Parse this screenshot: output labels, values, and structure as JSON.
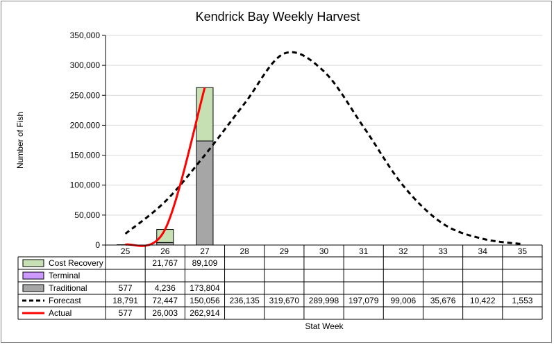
{
  "chart_data": {
    "type": "bar",
    "title": "Kendrick Bay Weekly Harvest",
    "xlabel": "Stat Week",
    "ylabel": "Number of Fish",
    "categories": [
      "25",
      "26",
      "27",
      "28",
      "29",
      "30",
      "31",
      "32",
      "33",
      "34",
      "35"
    ],
    "ylim": [
      0,
      350000
    ],
    "yticks": [
      0,
      50000,
      100000,
      150000,
      200000,
      250000,
      300000,
      350000
    ],
    "ytick_labels": [
      "0",
      "50,000",
      "100,000",
      "150,000",
      "200,000",
      "250,000",
      "300,000",
      "350,000"
    ],
    "grid": "horizontal",
    "legend": "data-table",
    "series": [
      {
        "name": "Cost Recovery",
        "kind": "stacked-bar",
        "color": "#c6e0b4",
        "values": [
          null,
          21767,
          89109,
          null,
          null,
          null,
          null,
          null,
          null,
          null,
          null
        ],
        "labels": [
          "",
          "21,767",
          "89,109",
          "",
          "",
          "",
          "",
          "",
          "",
          "",
          ""
        ]
      },
      {
        "name": "Terminal",
        "kind": "stacked-bar",
        "color": "#cc99ff",
        "values": [
          null,
          null,
          null,
          null,
          null,
          null,
          null,
          null,
          null,
          null,
          null
        ],
        "labels": [
          "",
          "",
          "",
          "",
          "",
          "",
          "",
          "",
          "",
          "",
          ""
        ]
      },
      {
        "name": "Traditional",
        "kind": "stacked-bar",
        "color": "#a6a6a6",
        "values": [
          577,
          4236,
          173804,
          null,
          null,
          null,
          null,
          null,
          null,
          null,
          null
        ],
        "labels": [
          "577",
          "4,236",
          "173,804",
          "",
          "",
          "",
          "",
          "",
          "",
          "",
          ""
        ]
      },
      {
        "name": "Forecast",
        "kind": "dashed-line",
        "color": "#000000",
        "values": [
          18791,
          72447,
          150056,
          236135,
          319670,
          289998,
          197079,
          99006,
          35676,
          10422,
          1553
        ],
        "labels": [
          "18,791",
          "72,447",
          "150,056",
          "236,135",
          "319,670",
          "289,998",
          "197,079",
          "99,006",
          "35,676",
          "10,422",
          "1,553"
        ]
      },
      {
        "name": "Actual",
        "kind": "line",
        "color": "#ff0000",
        "values": [
          577,
          26003,
          262914,
          null,
          null,
          null,
          null,
          null,
          null,
          null,
          null
        ],
        "labels": [
          "577",
          "26,003",
          "262,914",
          "",
          "",
          "",
          "",
          "",
          "",
          "",
          ""
        ]
      }
    ]
  }
}
